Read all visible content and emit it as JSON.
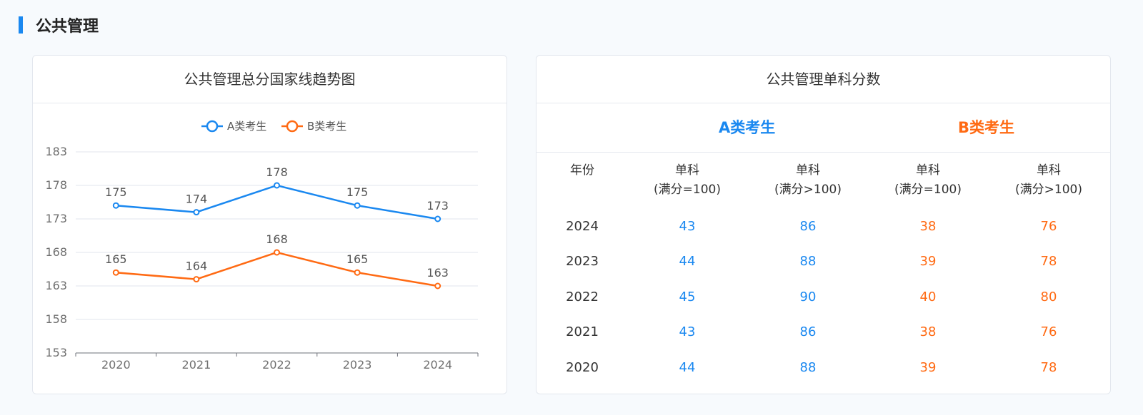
{
  "section": {
    "title": "公共管理"
  },
  "chart_card": {
    "title": "公共管理总分国家线趋势图"
  },
  "table_card": {
    "title": "公共管理单科分数",
    "group_a": "A类考生",
    "group_b": "B类考生",
    "headers": [
      {
        "line1": "年份",
        "line2": ""
      },
      {
        "line1": "单科",
        "line2": "(满分=100)"
      },
      {
        "line1": "单科",
        "line2": "(满分>100)"
      },
      {
        "line1": "单科",
        "line2": "(满分=100)"
      },
      {
        "line1": "单科",
        "line2": "(满分>100)"
      }
    ],
    "rows": [
      [
        "2024",
        "43",
        "86",
        "38",
        "76"
      ],
      [
        "2023",
        "44",
        "88",
        "39",
        "78"
      ],
      [
        "2022",
        "45",
        "90",
        "40",
        "80"
      ],
      [
        "2021",
        "43",
        "86",
        "38",
        "76"
      ],
      [
        "2020",
        "44",
        "88",
        "39",
        "78"
      ]
    ]
  },
  "colors": {
    "accent": "#1a88f0",
    "a": "#1a88f0",
    "b": "#ff6a13"
  },
  "chart_data": {
    "type": "line",
    "title": "公共管理总分国家线趋势图",
    "categories": [
      "2020",
      "2021",
      "2022",
      "2023",
      "2024"
    ],
    "series": [
      {
        "name": "A类考生",
        "values": [
          175,
          174,
          178,
          175,
          173
        ],
        "color": "#1a88f0"
      },
      {
        "name": "B类考生",
        "values": [
          165,
          164,
          168,
          165,
          163
        ],
        "color": "#ff6a13"
      }
    ],
    "ylim": [
      153,
      183
    ],
    "yticks": [
      153,
      158,
      163,
      168,
      173,
      178,
      183
    ],
    "grid": true,
    "legend": "top-center",
    "xlabel": "",
    "ylabel": ""
  }
}
